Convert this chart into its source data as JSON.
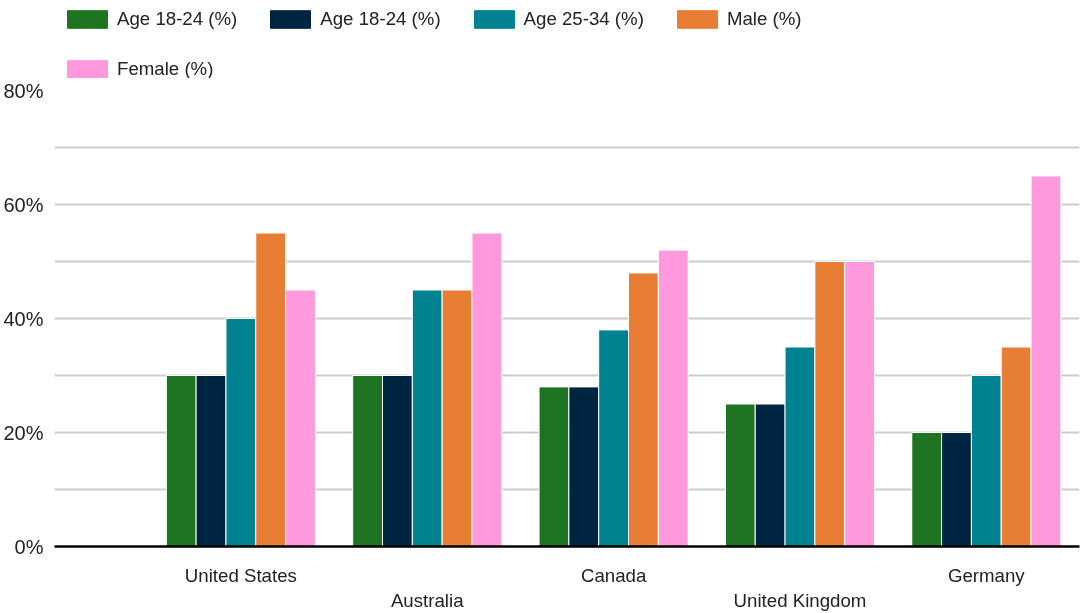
{
  "chart_data": {
    "type": "bar",
    "categories": [
      "United States",
      "Australia",
      "Canada",
      "United Kingdom",
      "Germany"
    ],
    "series": [
      {
        "name": "Age 18-24 (%)",
        "color": "#1e7420",
        "values": [
          30,
          30,
          28,
          25,
          20
        ]
      },
      {
        "name": "Age 18-24 (%)",
        "color": "#002540",
        "values": [
          30,
          30,
          28,
          25,
          20
        ]
      },
      {
        "name": "Age 25-34 (%)",
        "color": "#008290",
        "values": [
          40,
          45,
          38,
          35,
          30
        ]
      },
      {
        "name": "Male (%)",
        "color": "#e87d34",
        "values": [
          55,
          45,
          48,
          50,
          35
        ]
      },
      {
        "name": "Female (%)",
        "color": "#ff99dd",
        "values": [
          45,
          55,
          52,
          50,
          65
        ]
      }
    ],
    "ylim": [
      0,
      80
    ],
    "yticks": [
      {
        "value": 0,
        "label": "0%"
      },
      {
        "value": 10,
        "label": null
      },
      {
        "value": 20,
        "label": "20%"
      },
      {
        "value": 30,
        "label": null
      },
      {
        "value": 40,
        "label": "40%"
      },
      {
        "value": 50,
        "label": null
      },
      {
        "value": 60,
        "label": "60%"
      },
      {
        "value": 70,
        "label": null
      },
      {
        "value": 80,
        "label": "80%"
      }
    ],
    "grid": "y",
    "legend": "top"
  }
}
